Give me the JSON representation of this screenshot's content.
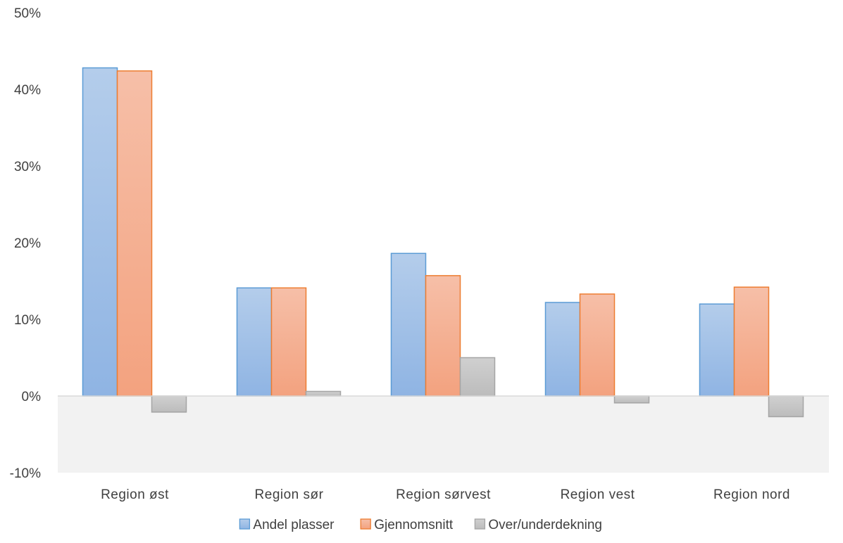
{
  "chart_data": {
    "type": "bar",
    "title": "",
    "xlabel": "",
    "ylabel": "",
    "categories": [
      "Region øst",
      "Region sør",
      "Region sørvest",
      "Region vest",
      "Region nord"
    ],
    "series": [
      {
        "name": "Andel plasser",
        "values": [
          42.8,
          14.1,
          18.6,
          12.2,
          12.0
        ],
        "color": "#5B9BD5",
        "fill_top": "#B4CDEB",
        "fill_bottom": "#8FB4E3"
      },
      {
        "name": "Gjennomsnitt",
        "values": [
          42.4,
          14.1,
          15.7,
          13.3,
          14.2
        ],
        "color": "#ED7D31",
        "fill_top": "#F6BFA8",
        "fill_bottom": "#F3A27F"
      },
      {
        "name": "Over/underdekning",
        "values": [
          -2.1,
          0.6,
          5.0,
          -0.9,
          -2.7
        ],
        "color": "#A5A5A5",
        "fill_top": "#D0D0D0",
        "fill_bottom": "#BCBCBC"
      }
    ],
    "ylim": [
      -10,
      50
    ],
    "yticks": [
      -10,
      0,
      10,
      20,
      30,
      40,
      50
    ],
    "ytick_labels": [
      "-10%",
      "0%",
      "10%",
      "20%",
      "30%",
      "40%",
      "50%"
    ],
    "grid": false,
    "legend_position": "bottom",
    "colors": {
      "zero_line": "#D9D9D9",
      "negative_band": "#F2F2F2"
    }
  }
}
